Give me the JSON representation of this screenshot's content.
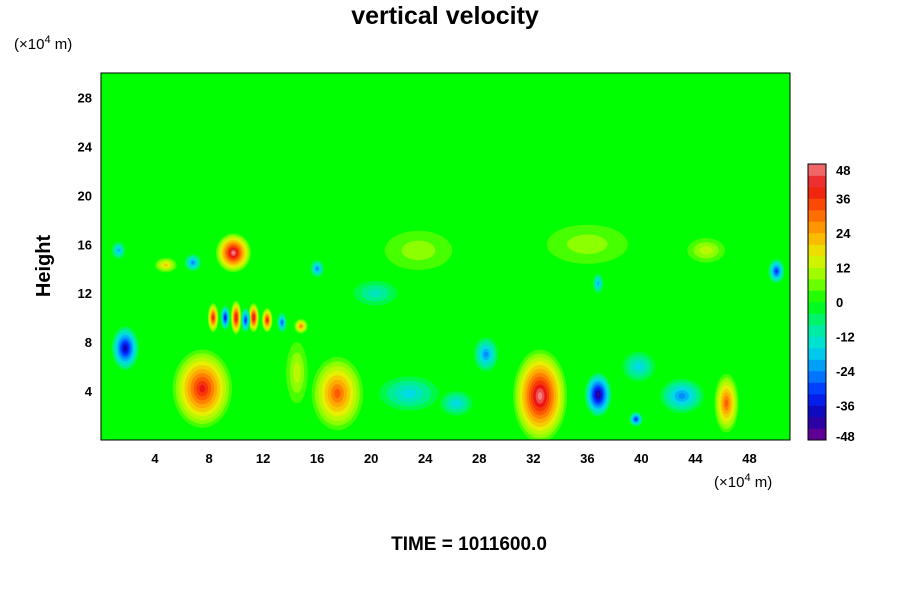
{
  "chart_data": {
    "type": "heatmap",
    "title": "vertical velocity",
    "ylabel": "Height",
    "xlabel": "",
    "x_unit": {
      "pre": "(×10",
      "exp": "4",
      "post": " m)"
    },
    "y_unit": {
      "pre": "(×10",
      "exp": "4",
      "post": " m)"
    },
    "xlim": [
      0,
      51
    ],
    "ylim": [
      0,
      30
    ],
    "x_ticks": [
      4,
      8,
      12,
      16,
      20,
      24,
      28,
      32,
      36,
      40,
      44,
      48
    ],
    "y_ticks": [
      4,
      8,
      12,
      16,
      20,
      24,
      28
    ],
    "colorbar": {
      "min": -48,
      "max": 48,
      "step": 4,
      "ticks": [
        48,
        36,
        24,
        12,
        0,
        -12,
        -24,
        -36,
        -48
      ]
    },
    "background_value": 0,
    "features": [
      {
        "x": 7.5,
        "y": 4.2,
        "rx": 2.2,
        "ry": 3.2,
        "value": 40
      },
      {
        "x": 17.5,
        "y": 3.8,
        "rx": 1.9,
        "ry": 3.0,
        "value": 32
      },
      {
        "x": 32.5,
        "y": 3.6,
        "rx": 2.0,
        "ry": 3.8,
        "value": 46
      },
      {
        "x": 46.3,
        "y": 3.0,
        "rx": 0.9,
        "ry": 2.4,
        "value": 32
      },
      {
        "x": 9.8,
        "y": 15.3,
        "rx": 1.3,
        "ry": 1.6,
        "value": 48
      },
      {
        "x": 8.3,
        "y": 10.0,
        "rx": 0.4,
        "ry": 1.2,
        "value": 40
      },
      {
        "x": 10.0,
        "y": 10.0,
        "rx": 0.4,
        "ry": 1.4,
        "value": 44
      },
      {
        "x": 11.3,
        "y": 10.0,
        "rx": 0.4,
        "ry": 1.2,
        "value": 44
      },
      {
        "x": 12.3,
        "y": 9.8,
        "rx": 0.4,
        "ry": 1.0,
        "value": 40
      },
      {
        "x": 14.8,
        "y": 9.3,
        "rx": 0.5,
        "ry": 0.6,
        "value": 28
      },
      {
        "x": 1.8,
        "y": 7.5,
        "rx": 1.0,
        "ry": 1.8,
        "value": -40
      },
      {
        "x": 9.2,
        "y": 10.0,
        "rx": 0.35,
        "ry": 1.0,
        "value": -36
      },
      {
        "x": 10.7,
        "y": 9.8,
        "rx": 0.35,
        "ry": 1.0,
        "value": -30
      },
      {
        "x": 13.4,
        "y": 9.6,
        "rx": 0.35,
        "ry": 0.8,
        "value": -28
      },
      {
        "x": 36.8,
        "y": 3.7,
        "rx": 1.0,
        "ry": 1.8,
        "value": -42
      },
      {
        "x": 39.6,
        "y": 1.7,
        "rx": 0.5,
        "ry": 0.6,
        "value": -32
      },
      {
        "x": 43.0,
        "y": 3.6,
        "rx": 1.6,
        "ry": 1.4,
        "value": -22
      },
      {
        "x": 22.8,
        "y": 3.8,
        "rx": 2.2,
        "ry": 1.4,
        "value": -16
      },
      {
        "x": 26.3,
        "y": 3.0,
        "rx": 1.2,
        "ry": 1.0,
        "value": -14
      },
      {
        "x": 28.5,
        "y": 7.0,
        "rx": 0.9,
        "ry": 1.4,
        "value": -22
      },
      {
        "x": 6.8,
        "y": 14.5,
        "rx": 0.6,
        "ry": 0.7,
        "value": -24
      },
      {
        "x": 1.3,
        "y": 15.5,
        "rx": 0.5,
        "ry": 0.7,
        "value": -20
      },
      {
        "x": 16.0,
        "y": 14.0,
        "rx": 0.5,
        "ry": 0.7,
        "value": -22
      },
      {
        "x": 50.0,
        "y": 13.8,
        "rx": 0.6,
        "ry": 1.0,
        "value": -32
      },
      {
        "x": 36.8,
        "y": 12.8,
        "rx": 0.4,
        "ry": 0.8,
        "value": -20
      },
      {
        "x": 20.3,
        "y": 12.0,
        "rx": 1.6,
        "ry": 1.0,
        "value": -12
      },
      {
        "x": 39.8,
        "y": 6.0,
        "rx": 1.2,
        "ry": 1.2,
        "value": -14
      },
      {
        "x": 44.8,
        "y": 15.5,
        "rx": 1.4,
        "ry": 1.0,
        "value": 12
      },
      {
        "x": 4.8,
        "y": 14.3,
        "rx": 0.8,
        "ry": 0.6,
        "value": 18
      },
      {
        "x": 23.5,
        "y": 15.5,
        "rx": 2.5,
        "ry": 1.6,
        "value": 6
      },
      {
        "x": 36.0,
        "y": 16.0,
        "rx": 3.0,
        "ry": 1.6,
        "value": 6
      },
      {
        "x": 14.5,
        "y": 5.5,
        "rx": 0.8,
        "ry": 2.5,
        "value": 10
      }
    ]
  }
}
